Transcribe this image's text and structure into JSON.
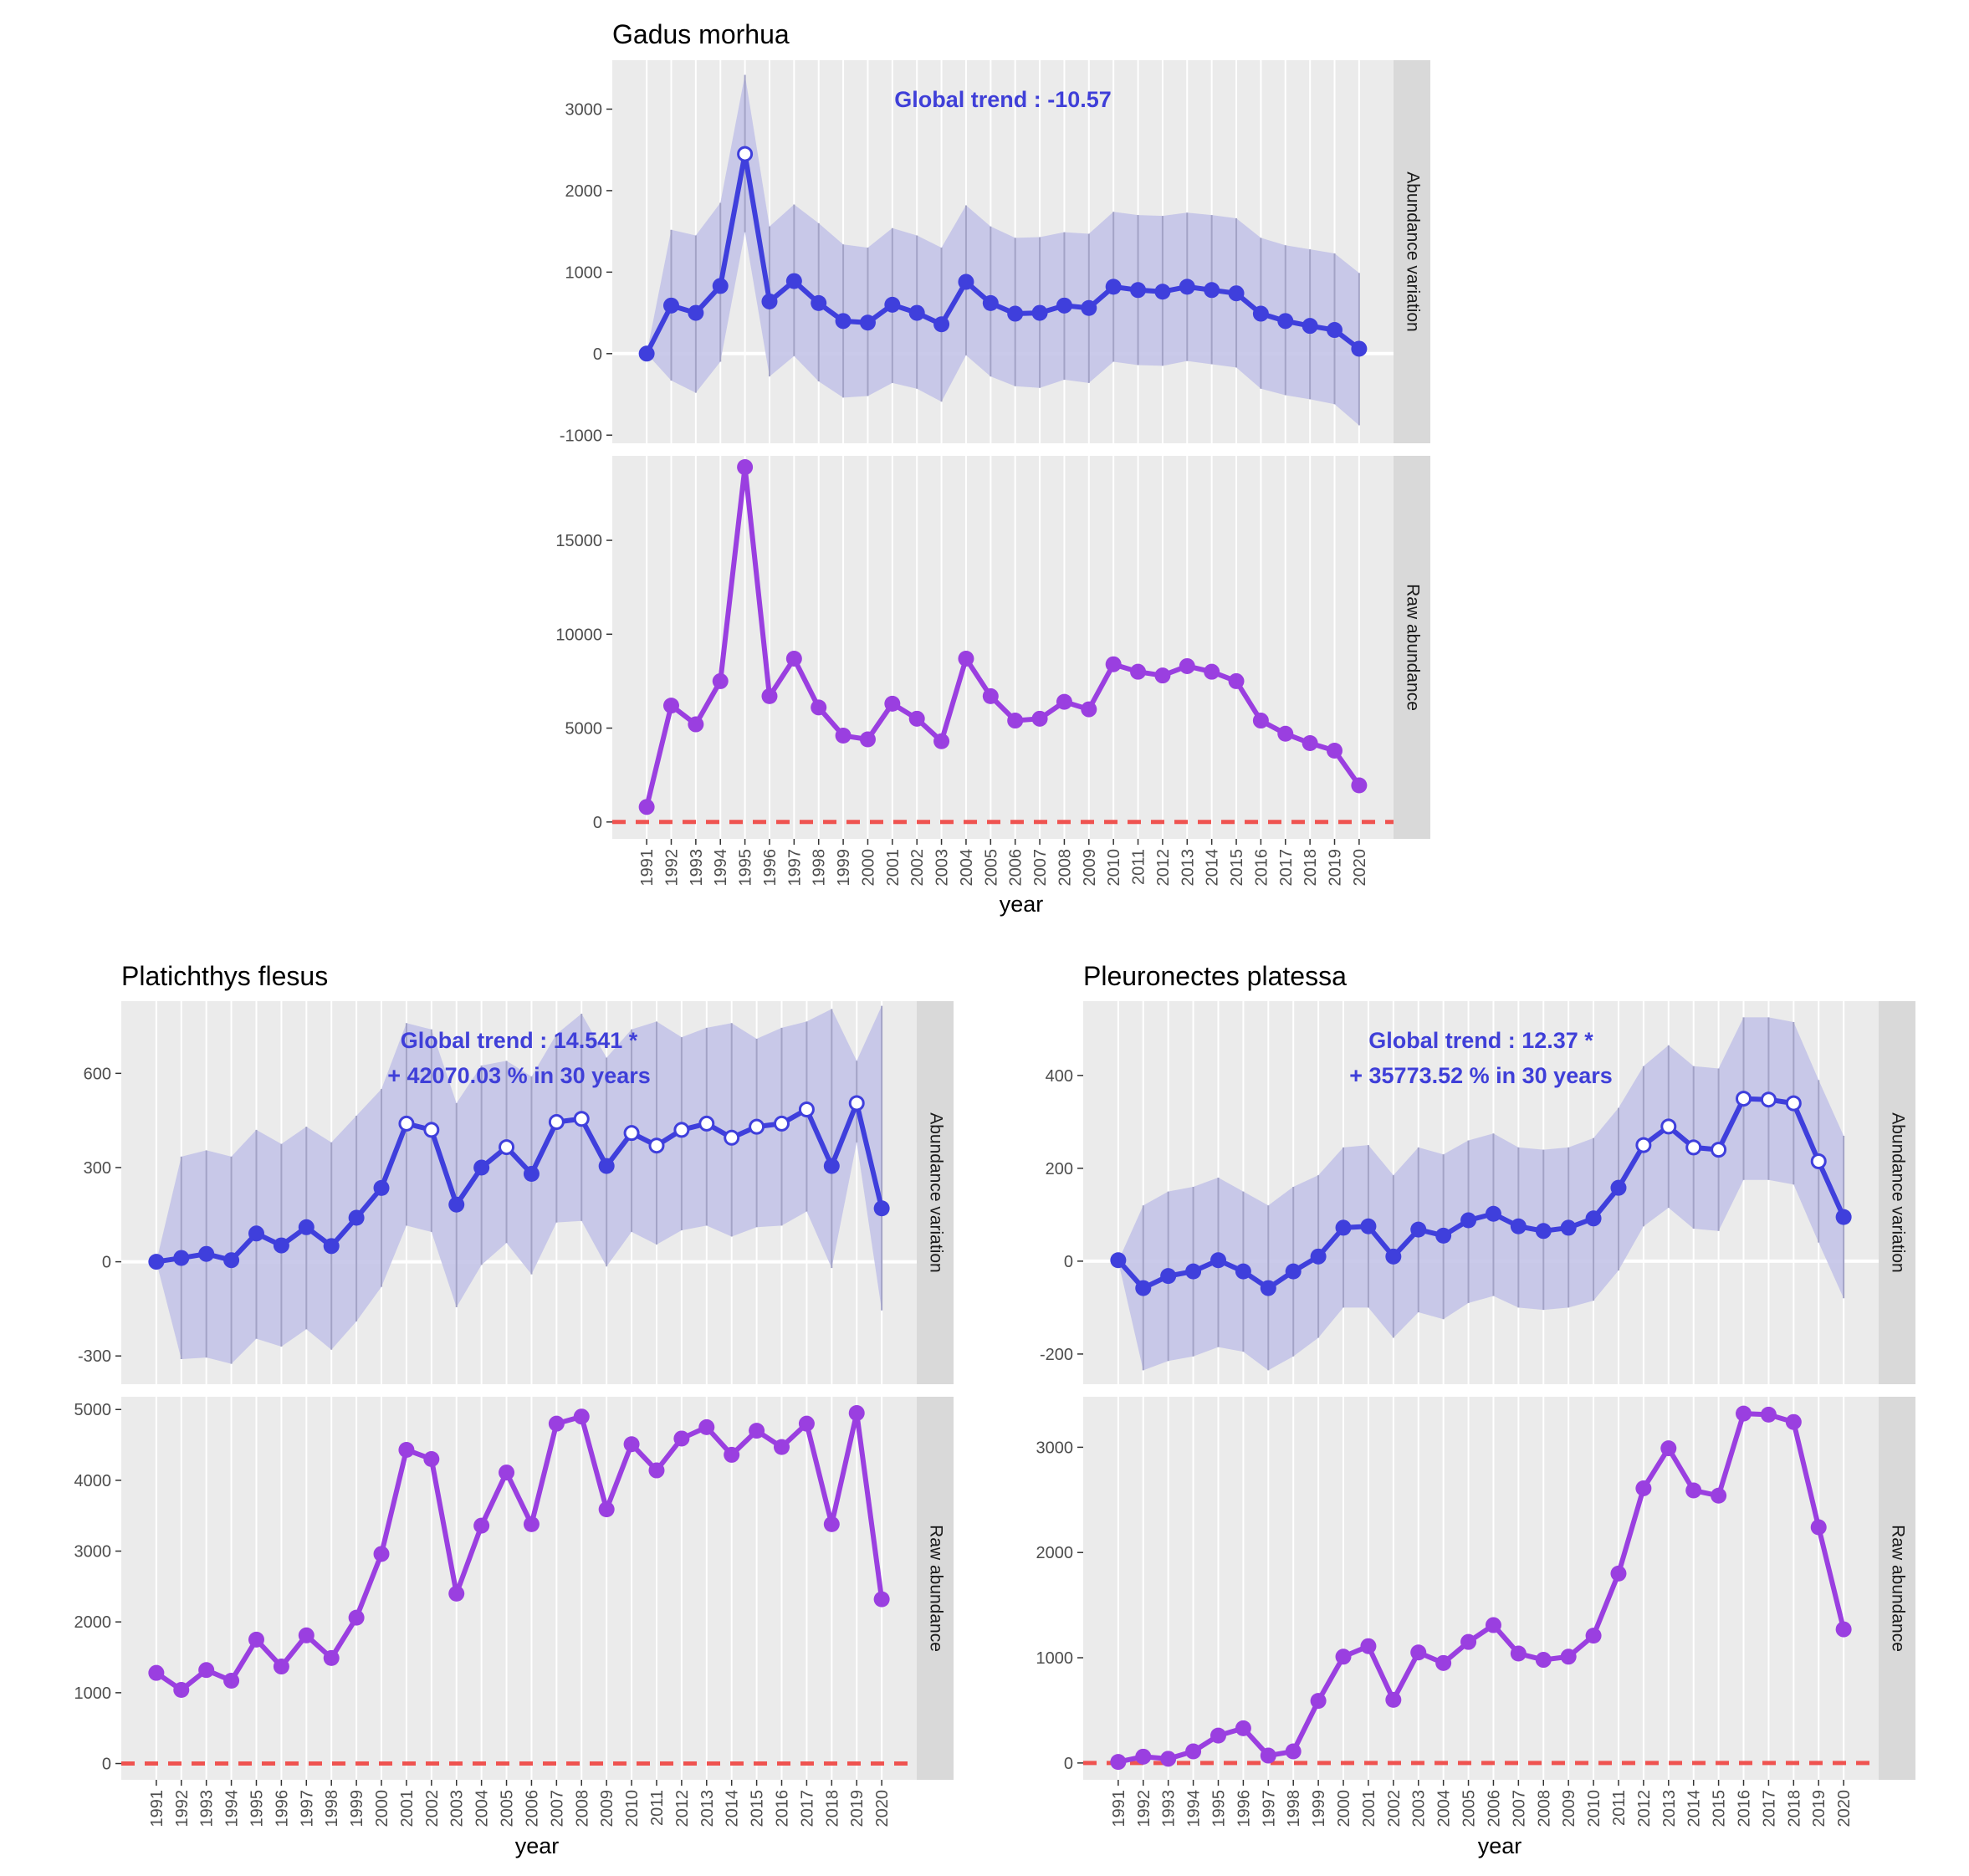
{
  "colors": {
    "panel_bg": "#ebebeb",
    "strip_bg": "#d9d9d9",
    "grid_white": "#ffffff",
    "trend_blue": "#3f3fdc",
    "ribbon_fill": "#c4c4e8",
    "ribbon_lines": "#a3a3c6",
    "raw_purple": "#9a3fe0",
    "zero_dash_red": "#ef5350",
    "annotation_blue": "#3f3fd8",
    "axis_text": "#4d4d4d",
    "title_text": "#000000"
  },
  "chart_data": [
    {
      "type": "line",
      "title": "Gadus morhua",
      "xlabel": "year",
      "x": [
        1991,
        1992,
        1993,
        1994,
        1995,
        1996,
        1997,
        1998,
        1999,
        2000,
        2001,
        2002,
        2003,
        2004,
        2005,
        2006,
        2007,
        2008,
        2009,
        2010,
        2011,
        2012,
        2013,
        2014,
        2015,
        2016,
        2017,
        2018,
        2019,
        2020
      ],
      "x_ticks": [
        "1991",
        "1992",
        "1993",
        "1994",
        "1995",
        "1996",
        "1997",
        "1998",
        "1999",
        "2000",
        "2001",
        "2002",
        "2003",
        "2004",
        "2005",
        "2006",
        "2007",
        "2008",
        "2009",
        "2010",
        "2011",
        "2012",
        "2013",
        "2014",
        "2015",
        "2016",
        "2017",
        "2018",
        "2019",
        "2020"
      ],
      "facets": [
        {
          "strip": "Abundance variation",
          "annotation": [
            "Global trend : -10.57"
          ],
          "ylim": [
            -1100,
            3600
          ],
          "y_ticks": [
            -1000,
            0,
            1000,
            2000,
            3000
          ],
          "y_tick_labels": [
            "-1000",
            "0",
            "1000",
            "2000",
            "3000"
          ],
          "zero_line": "white",
          "ribbon_upper": [
            0,
            1520,
            1450,
            1850,
            3420,
            1560,
            1830,
            1600,
            1340,
            1300,
            1540,
            1450,
            1300,
            1820,
            1560,
            1420,
            1430,
            1490,
            1470,
            1740,
            1700,
            1690,
            1730,
            1700,
            1660,
            1420,
            1330,
            1280,
            1230,
            990
          ],
          "ribbon_lower": [
            0,
            -330,
            -480,
            -100,
            1490,
            -280,
            -30,
            -340,
            -540,
            -520,
            -360,
            -430,
            -590,
            -20,
            -280,
            -400,
            -420,
            -320,
            -360,
            -100,
            -140,
            -150,
            -90,
            -130,
            -170,
            -430,
            -510,
            -560,
            -620,
            -880
          ],
          "values": [
            0,
            590,
            500,
            830,
            2450,
            640,
            890,
            620,
            400,
            380,
            600,
            500,
            360,
            880,
            620,
            490,
            500,
            590,
            560,
            820,
            780,
            760,
            820,
            780,
            740,
            490,
            400,
            340,
            290,
            60
          ],
          "open_points": [
            false,
            false,
            false,
            false,
            true,
            false,
            false,
            false,
            false,
            false,
            false,
            false,
            false,
            false,
            false,
            false,
            false,
            false,
            false,
            false,
            false,
            false,
            false,
            false,
            false,
            false,
            false,
            false,
            false,
            false
          ]
        },
        {
          "strip": "Raw abundance",
          "ylim": [
            -900,
            19500
          ],
          "y_ticks": [
            0,
            5000,
            10000,
            15000
          ],
          "y_tick_labels": [
            "0",
            "5000",
            "10000",
            "15000"
          ],
          "zero_line": "red-dashed",
          "values": [
            800,
            6200,
            5200,
            7500,
            18900,
            6700,
            8700,
            6100,
            4600,
            4400,
            6300,
            5500,
            4300,
            8700,
            6700,
            5400,
            5500,
            6400,
            6000,
            8400,
            8000,
            7800,
            8300,
            8000,
            7500,
            5400,
            4700,
            4200,
            3800,
            1950
          ]
        }
      ]
    },
    {
      "type": "line",
      "title": "Platichthys flesus",
      "xlabel": "year",
      "x": [
        1991,
        1992,
        1993,
        1994,
        1995,
        1996,
        1997,
        1998,
        1999,
        2000,
        2001,
        2002,
        2003,
        2004,
        2005,
        2006,
        2007,
        2008,
        2009,
        2010,
        2011,
        2012,
        2013,
        2014,
        2015,
        2016,
        2017,
        2018,
        2019,
        2020
      ],
      "x_ticks": [
        "1991",
        "1992",
        "1993",
        "1994",
        "1995",
        "1996",
        "1997",
        "1998",
        "1999",
        "2000",
        "2001",
        "2002",
        "2003",
        "2004",
        "2005",
        "2006",
        "2007",
        "2008",
        "2009",
        "2010",
        "2011",
        "2012",
        "2013",
        "2014",
        "2015",
        "2016",
        "2017",
        "2018",
        "2019",
        "2020"
      ],
      "facets": [
        {
          "strip": "Abundance variation",
          "annotation": [
            "Global trend : 14.541 *",
            "+ 42070.03 % in 30 years"
          ],
          "ylim": [
            -390,
            830
          ],
          "y_ticks": [
            -300,
            0,
            300,
            600
          ],
          "y_tick_labels": [
            "-300",
            "0",
            "300",
            "600"
          ],
          "zero_line": "white",
          "ribbon_upper": [
            0,
            335,
            355,
            335,
            420,
            375,
            430,
            380,
            465,
            550,
            760,
            740,
            505,
            625,
            640,
            590,
            725,
            790,
            650,
            740,
            765,
            715,
            745,
            760,
            710,
            745,
            765,
            805,
            640,
            815
          ],
          "ribbon_lower": [
            0,
            -310,
            -305,
            -325,
            -245,
            -270,
            -215,
            -280,
            -190,
            -80,
            115,
            95,
            -145,
            -10,
            60,
            -40,
            125,
            130,
            -15,
            95,
            55,
            100,
            115,
            80,
            110,
            115,
            160,
            -20,
            380,
            -155
          ],
          "values": [
            0,
            12,
            25,
            5,
            90,
            52,
            110,
            50,
            140,
            235,
            440,
            420,
            182,
            300,
            365,
            280,
            445,
            455,
            305,
            410,
            370,
            420,
            440,
            395,
            430,
            440,
            485,
            305,
            505,
            170
          ],
          "open_points": [
            false,
            false,
            false,
            false,
            false,
            false,
            false,
            false,
            false,
            false,
            true,
            true,
            false,
            false,
            true,
            false,
            true,
            true,
            false,
            true,
            true,
            true,
            true,
            true,
            true,
            true,
            true,
            false,
            true,
            false
          ]
        },
        {
          "strip": "Raw abundance",
          "ylim": [
            -230,
            5180
          ],
          "y_ticks": [
            0,
            1000,
            2000,
            3000,
            4000,
            5000
          ],
          "y_tick_labels": [
            "0",
            "1000",
            "2000",
            "3000",
            "4000",
            "5000"
          ],
          "zero_line": "red-dashed",
          "values": [
            1280,
            1040,
            1320,
            1170,
            1750,
            1370,
            1810,
            1490,
            2060,
            2960,
            4430,
            4300,
            2400,
            3360,
            4110,
            3380,
            4800,
            4900,
            3590,
            4510,
            4140,
            4590,
            4750,
            4360,
            4700,
            4470,
            4800,
            3380,
            4950,
            2320
          ]
        }
      ]
    },
    {
      "type": "line",
      "title": "Pleuronectes platessa",
      "xlabel": "year",
      "x": [
        1991,
        1992,
        1993,
        1994,
        1995,
        1996,
        1997,
        1998,
        1999,
        2000,
        2001,
        2002,
        2003,
        2004,
        2005,
        2006,
        2007,
        2008,
        2009,
        2010,
        2011,
        2012,
        2013,
        2014,
        2015,
        2016,
        2017,
        2018,
        2019,
        2020
      ],
      "x_ticks": [
        "1991",
        "1992",
        "1993",
        "1994",
        "1995",
        "1996",
        "1997",
        "1998",
        "1999",
        "2000",
        "2001",
        "2002",
        "2003",
        "2004",
        "2005",
        "2006",
        "2007",
        "2008",
        "2009",
        "2010",
        "2011",
        "2012",
        "2013",
        "2014",
        "2015",
        "2016",
        "2017",
        "2018",
        "2019",
        "2020"
      ],
      "facets": [
        {
          "strip": "Abundance variation",
          "annotation": [
            "Global trend : 12.37 *",
            "+ 35773.52 % in 30 years"
          ],
          "ylim": [
            -265,
            560
          ],
          "y_ticks": [
            -200,
            0,
            200,
            400
          ],
          "y_tick_labels": [
            "-200",
            "0",
            "200",
            "400"
          ],
          "zero_line": "white",
          "ribbon_upper": [
            0,
            120,
            150,
            160,
            180,
            150,
            120,
            160,
            185,
            245,
            250,
            185,
            245,
            230,
            260,
            275,
            245,
            240,
            245,
            265,
            330,
            420,
            465,
            420,
            415,
            525,
            525,
            515,
            390,
            270
          ],
          "ribbon_lower": [
            0,
            -235,
            -215,
            -205,
            -185,
            -195,
            -235,
            -205,
            -165,
            -100,
            -100,
            -165,
            -110,
            -125,
            -90,
            -75,
            -100,
            -105,
            -100,
            -85,
            -20,
            75,
            115,
            70,
            65,
            175,
            175,
            165,
            40,
            -80
          ],
          "values": [
            2,
            -58,
            -32,
            -22,
            2,
            -22,
            -58,
            -22,
            10,
            72,
            75,
            10,
            68,
            55,
            88,
            102,
            75,
            65,
            72,
            92,
            158,
            250,
            290,
            245,
            240,
            350,
            348,
            340,
            215,
            95
          ],
          "open_points": [
            false,
            false,
            false,
            false,
            false,
            false,
            false,
            false,
            false,
            false,
            false,
            false,
            false,
            false,
            false,
            false,
            false,
            false,
            false,
            false,
            false,
            true,
            true,
            true,
            true,
            true,
            true,
            true,
            true,
            false
          ]
        },
        {
          "strip": "Raw abundance",
          "ylim": [
            -160,
            3480
          ],
          "y_ticks": [
            0,
            1000,
            2000,
            3000
          ],
          "y_tick_labels": [
            "0",
            "1000",
            "2000",
            "3000"
          ],
          "zero_line": "red-dashed",
          "values": [
            10,
            60,
            40,
            110,
            260,
            330,
            70,
            110,
            590,
            1010,
            1110,
            600,
            1050,
            950,
            1150,
            1310,
            1040,
            980,
            1010,
            1210,
            1800,
            2610,
            2990,
            2590,
            2540,
            3320,
            3310,
            3240,
            2240,
            1270
          ]
        }
      ]
    }
  ]
}
